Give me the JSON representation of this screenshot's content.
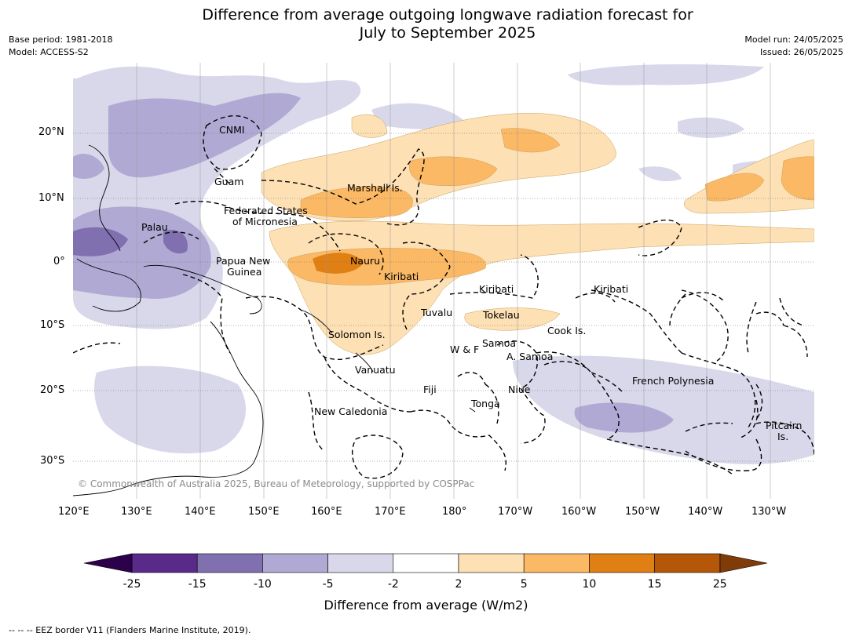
{
  "title_line1": "Difference from average outgoing longwave radiation forecast for",
  "title_line2": "July to September 2025",
  "base_period": "Base period: 1981-2018",
  "model": "Model: ACCESS-S2",
  "model_run": "Model run: 24/05/2025",
  "issued": "Issued: 26/05/2025",
  "lon_ticks": [
    "120°E",
    "130°E",
    "140°E",
    "150°E",
    "160°E",
    "170°E",
    "180°",
    "170°W",
    "160°W",
    "150°W",
    "140°W",
    "130°W"
  ],
  "lat_ticks": [
    "20°N",
    "10°N",
    "0°",
    "10°S",
    "20°S",
    "30°S"
  ],
  "labels": {
    "cnmi": "CNMI",
    "guam": "Guam",
    "marshall": "Marshall Is.",
    "fsm1": "Federated States",
    "fsm2": "of Micronesia",
    "palau": "Palau",
    "png1": "Papua New",
    "png2": "Guinea",
    "nauru": "Nauru",
    "kiribati_w": "Kiribati",
    "kiribati_c": "Kiribati",
    "kiribati_e": "Kiribati",
    "tuvalu": "Tuvalu",
    "tokelau": "Tokelau",
    "cook": "Cook Is.",
    "solomon": "Solomon Is.",
    "wf": "W & F",
    "samoa": "Samoa",
    "asamoa": "A. Samoa",
    "vanuatu": "Vanuatu",
    "fiji": "Fiji",
    "niue": "Niue",
    "tonga": "Tonga",
    "newcal": "New Caledonia",
    "frpoly": "French Polynesia",
    "pitcairn1": "Pitcairn",
    "pitcairn2": "Is."
  },
  "copyright": "© Commonwealth of Australia 2025, Bureau of Meteorology, supported by COSPPac",
  "colorbar": {
    "title": "Difference from average (W/m2)",
    "ticks": [
      "-25",
      "-15",
      "-10",
      "-5",
      "-2",
      "2",
      "5",
      "10",
      "15",
      "25"
    ],
    "colors": [
      "#5a2a8a",
      "#8070b0",
      "#b0a9d3",
      "#d8d8ea",
      "#ffffff",
      "#fde0b4",
      "#fbb865",
      "#e08014",
      "#b45708"
    ],
    "under_color": "#2d004b",
    "over_color": "#7f3b08"
  },
  "footer": "--  --  -- EEZ border V11 (Flanders Marine Institute, 2019)."
}
